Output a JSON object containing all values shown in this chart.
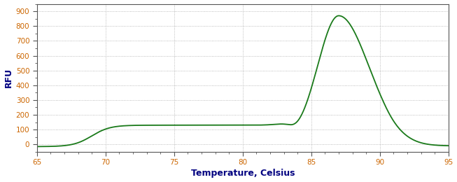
{
  "title": "",
  "xlabel": "Temperature, Celsius",
  "ylabel": "RFU",
  "xlim": [
    65,
    95
  ],
  "ylim": [
    -50,
    950
  ],
  "yticks": [
    0,
    100,
    200,
    300,
    400,
    500,
    600,
    700,
    800,
    900
  ],
  "xticks": [
    65,
    70,
    75,
    80,
    85,
    90,
    95
  ],
  "line_color": "#1a7a1a",
  "background_color": "#ffffff",
  "grid_color": "#aaaaaa",
  "axis_label_color": "#000080",
  "tick_label_color": "#cc6600",
  "spine_color": "#555555",
  "xlabel_fontsize": 9,
  "ylabel_fontsize": 9,
  "tick_fontsize": 7.5,
  "linewidth": 1.3
}
